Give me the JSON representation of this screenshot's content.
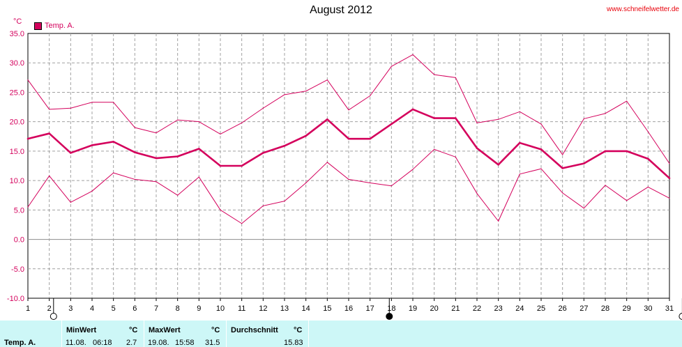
{
  "title": "August 2012",
  "website": "www.schneifelwetter.de",
  "unit": "°C",
  "legend": {
    "label": "Temp. A.",
    "color": "#d4005c"
  },
  "chart_data": {
    "type": "line",
    "title": "August 2012",
    "ylabel": "°C",
    "ylim": [
      -10,
      35
    ],
    "yticks": [
      "35.0",
      "30.0",
      "25.0",
      "20.0",
      "15.0",
      "10.0",
      "5.0",
      "0.0",
      "-5.0",
      "-10.0"
    ],
    "grid": true,
    "legend_position": "top-left",
    "x": [
      1,
      2,
      3,
      4,
      5,
      6,
      7,
      8,
      9,
      10,
      11,
      12,
      13,
      14,
      15,
      16,
      17,
      18,
      19,
      20,
      21,
      22,
      23,
      24,
      25,
      26,
      27,
      28,
      29,
      30,
      31
    ],
    "series": [
      {
        "role": "max",
        "color": "#d4005c",
        "values": [
          27.1,
          22.1,
          22.3,
          23.3,
          23.3,
          19.0,
          18.1,
          20.3,
          20.0,
          17.9,
          19.8,
          22.3,
          24.6,
          25.2,
          27.1,
          22.0,
          24.4,
          29.4,
          31.4,
          28.0,
          27.5,
          19.8,
          20.4,
          21.7,
          19.6,
          14.4,
          20.5,
          21.4,
          23.5,
          18.3,
          12.9
        ]
      },
      {
        "name": "Temp. A.",
        "role": "avg",
        "color": "#d4005c",
        "values": [
          17.1,
          18.0,
          14.7,
          16.0,
          16.6,
          14.8,
          13.8,
          14.1,
          15.4,
          12.5,
          12.5,
          14.7,
          15.9,
          17.6,
          20.4,
          17.1,
          17.1,
          19.6,
          22.1,
          20.6,
          20.6,
          15.5,
          12.7,
          16.4,
          15.3,
          12.1,
          12.9,
          15.0,
          15.0,
          13.7,
          10.4
        ]
      },
      {
        "role": "min",
        "color": "#d4005c",
        "values": [
          5.5,
          10.8,
          6.3,
          8.2,
          11.3,
          10.2,
          9.8,
          7.5,
          10.6,
          5.0,
          2.7,
          5.7,
          6.5,
          9.6,
          13.1,
          10.2,
          9.6,
          9.1,
          11.9,
          15.3,
          14.0,
          7.8,
          3.1,
          11.1,
          12.0,
          7.9,
          5.3,
          9.2,
          6.6,
          8.9,
          7.0
        ]
      }
    ],
    "markers": [
      {
        "day": 2.2,
        "type": "new-moon"
      },
      {
        "day": 17.9,
        "type": "full-moon"
      },
      {
        "day": 31.6,
        "type": "new-moon"
      }
    ]
  },
  "footer": {
    "row_label": "Temp. A.",
    "min": {
      "header": "MinWert",
      "unit": "°C",
      "date": "11.08.",
      "time": "06:18",
      "value": "2.7"
    },
    "max": {
      "header": "MaxWert",
      "unit": "°C",
      "date": "19.08.",
      "time": "15:58",
      "value": "31.5"
    },
    "avg": {
      "header": "Durchschnitt",
      "unit": "°C",
      "value": "15.83"
    }
  }
}
